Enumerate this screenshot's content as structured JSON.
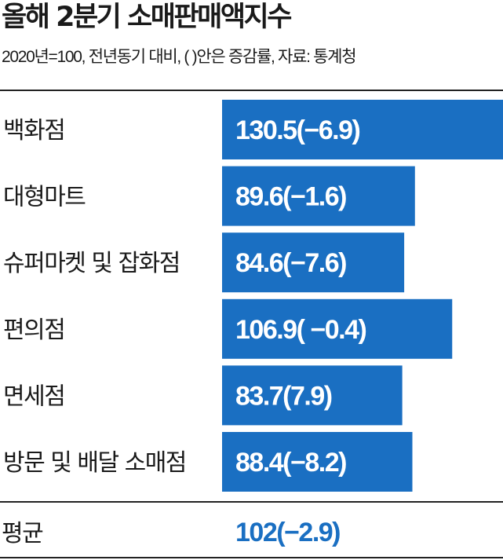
{
  "header": {
    "title": "올해 2분기 소매판매액지수",
    "subtitle": "2020년=100, 전년동기 대비, (   )안은 증감률, 자료: 통계청"
  },
  "colors": {
    "bar": "#1a6fc2",
    "avg_text": "#1a6fc2"
  },
  "chart_data": {
    "type": "bar",
    "orientation": "horizontal",
    "title": "올해 2분기 소매판매액지수",
    "categories": [
      "백화점",
      "대형마트",
      "슈퍼마켓 및 잡화점",
      "편의점",
      "면세점",
      "방문 및 배달 소매점"
    ],
    "values": [
      130.5,
      89.6,
      84.6,
      106.9,
      83.7,
      88.4
    ],
    "change_rates": [
      -6.9,
      -1.6,
      -7.6,
      -0.4,
      7.9,
      -8.2
    ],
    "bar_labels": [
      "130.5(−6.9)",
      "89.6(−1.6)",
      "84.6(−7.6)",
      "106.9( −0.4)",
      "83.7(7.9)",
      "88.4(−8.2)"
    ],
    "average": {
      "label": "평균",
      "value": 102,
      "change_rate": -2.9,
      "text": "102(−2.9)"
    },
    "xlim": [
      0,
      130.5
    ],
    "grid": false,
    "legend": "none"
  }
}
